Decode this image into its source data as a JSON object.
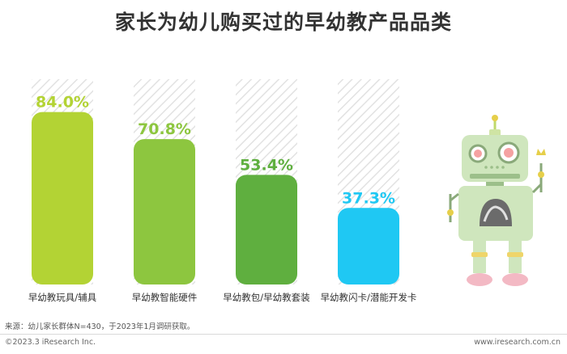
{
  "title": "家长为幼儿购买过的早幼教产品品类",
  "chart_data": {
    "type": "bar",
    "title": "家长为幼儿购买过的早幼教产品品类",
    "categories": [
      "早幼教玩具/辅具",
      "早幼教智能硬件",
      "早幼教包/早幼教套装",
      "早幼教闪卡/潜能开发卡"
    ],
    "values": [
      84.0,
      70.8,
      53.4,
      37.3
    ],
    "value_labels": [
      "84.0%",
      "70.8%",
      "53.4%",
      "37.3%"
    ],
    "colors": [
      "#b3d334",
      "#8dc63f",
      "#5faf3f",
      "#1fc8f3"
    ],
    "ylim": [
      0,
      100
    ],
    "xlabel": "",
    "ylabel": "",
    "grid": false,
    "legend": "none"
  },
  "source": "来源：幼儿家长群体N=430，于2023年1月调研获取。",
  "copyright": "©2023.3 iResearch Inc.",
  "website": "www.iresearch.com.cn"
}
